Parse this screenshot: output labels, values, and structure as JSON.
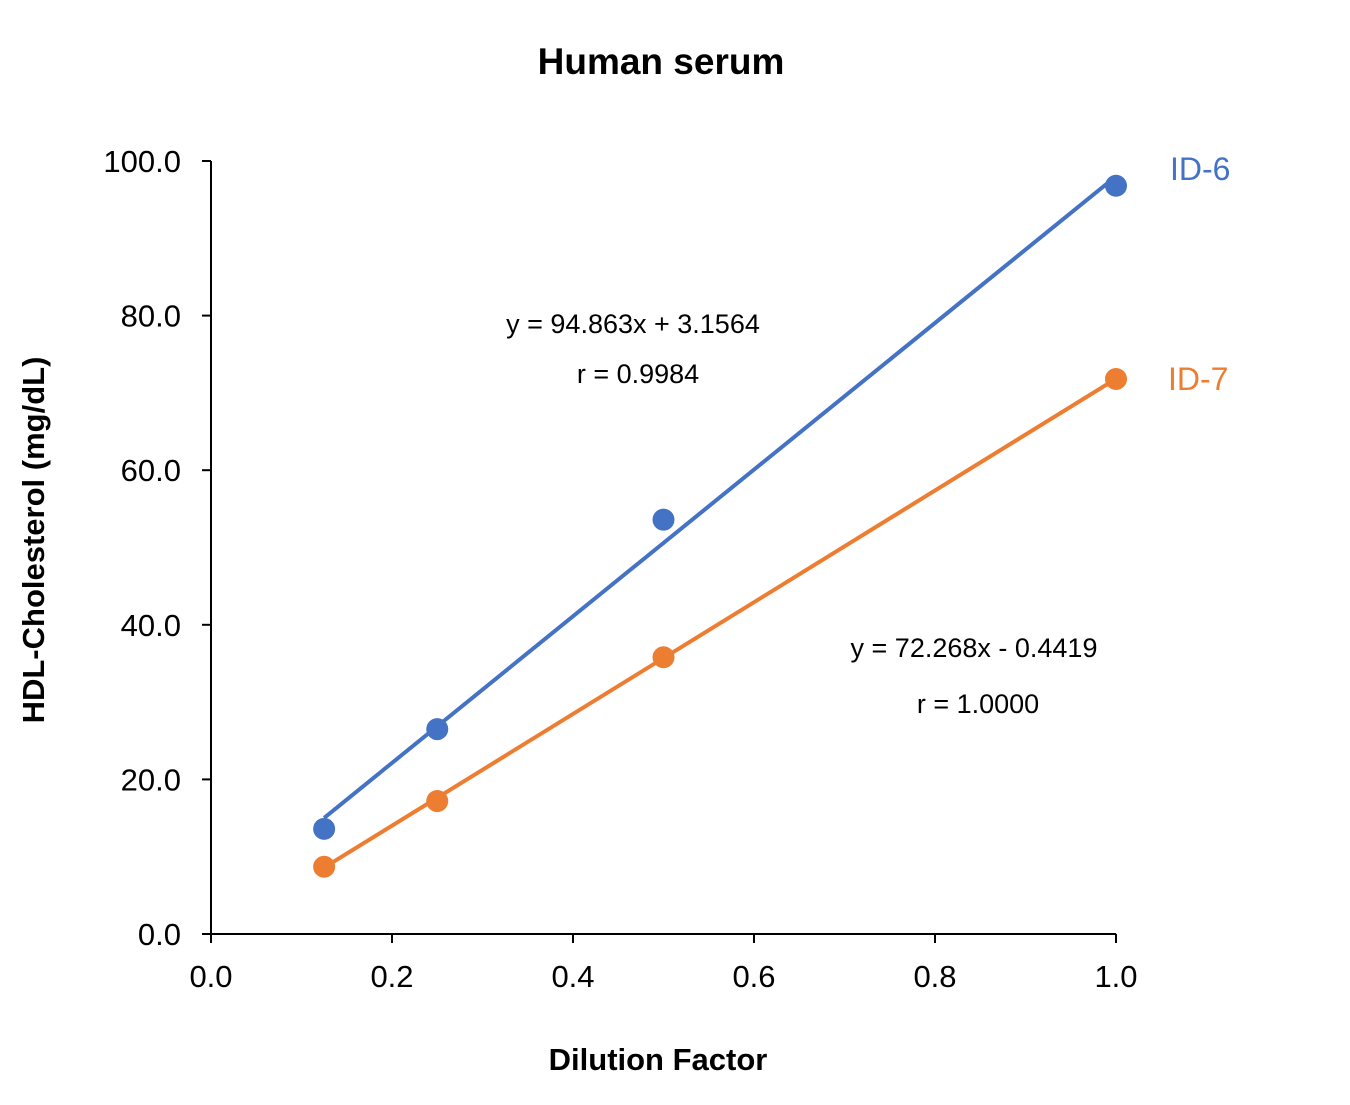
{
  "chart_data": {
    "type": "scatter",
    "title": "Human serum",
    "xlabel": "Dilution Factor",
    "ylabel": "HDL-Cholesterol (mg/dL)",
    "xlim": [
      0,
      1.0
    ],
    "ylim": [
      0,
      100
    ],
    "xticks": [
      "0.0",
      "0.2",
      "0.4",
      "0.6",
      "0.8",
      "1.0"
    ],
    "yticks": [
      "0.0",
      "20.0",
      "40.0",
      "60.0",
      "80.0",
      "100.0"
    ],
    "grid": false,
    "series": [
      {
        "name": "ID-6",
        "color": "#4472C4",
        "x": [
          0.125,
          0.25,
          0.5,
          1.0
        ],
        "y": [
          13.6,
          26.5,
          53.6,
          96.8
        ],
        "trendline": {
          "slope": 94.863,
          "intercept": 3.1564
        },
        "equation": "y = 94.863x + 3.1564",
        "r": "r = 0.9984"
      },
      {
        "name": "ID-7",
        "color": "#ED7D31",
        "x": [
          0.125,
          0.25,
          0.5,
          1.0
        ],
        "y": [
          8.7,
          17.2,
          35.8,
          71.8
        ],
        "trendline": {
          "slope": 72.268,
          "intercept": -0.4419
        },
        "equation": "y = 72.268x - 0.4419",
        "r": "r = 1.0000"
      }
    ]
  }
}
